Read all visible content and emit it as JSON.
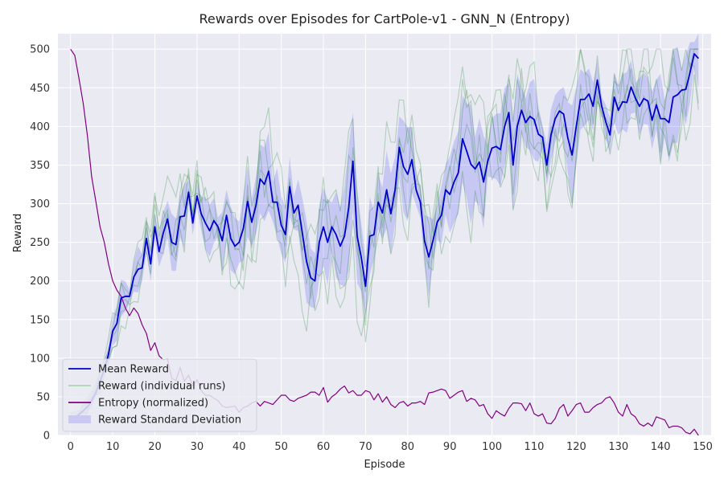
{
  "chart_data": {
    "type": "line",
    "title": "Rewards over Episodes for CartPole-v1 - GNN_N (Entropy)",
    "xlabel": "Episode",
    "ylabel": "Reward",
    "xlim": [
      -3,
      152
    ],
    "ylim": [
      0,
      520
    ],
    "xticks": [
      0,
      10,
      20,
      30,
      40,
      50,
      60,
      70,
      80,
      90,
      100,
      110,
      120,
      130,
      140,
      150
    ],
    "yticks": [
      0,
      50,
      100,
      150,
      200,
      250,
      300,
      350,
      400,
      450,
      500
    ],
    "grid": true,
    "legend_position": "lower-left",
    "colors": {
      "plot_bg": "#eaeaf2",
      "grid": "#ffffff",
      "mean": "#0000cc",
      "runs": "#2e8b3a",
      "entropy": "#800080",
      "std": "#0000ff"
    },
    "legend": [
      {
        "label": "Mean Reward",
        "kind": "line",
        "color": "#0000cc"
      },
      {
        "label": "Reward (individual runs)",
        "kind": "line",
        "color": "#a9d8b0"
      },
      {
        "label": "Entropy (normalized)",
        "kind": "line",
        "color": "#800080"
      },
      {
        "label": "Reward Standard Deviation",
        "kind": "patch",
        "color": "#c9c9f4"
      }
    ],
    "series": [
      {
        "name": "Mean Reward",
        "key": "mean",
        "x_start": 0,
        "values": [
          22,
          24,
          27,
          32,
          37,
          45,
          55,
          70,
          85,
          105,
          135,
          145,
          178,
          180,
          180,
          205,
          215,
          217,
          255,
          222,
          270,
          238,
          262,
          280,
          250,
          247,
          283,
          284,
          315,
          275,
          310,
          287,
          275,
          265,
          278,
          270,
          252,
          285,
          255,
          245,
          250,
          268,
          303,
          276,
          298,
          332,
          325,
          342,
          302,
          302,
          272,
          260,
          322,
          288,
          298,
          262,
          225,
          204,
          200,
          250,
          270,
          250,
          270,
          260,
          245,
          258,
          295,
          355,
          258,
          230,
          193,
          258,
          260,
          302,
          288,
          318,
          287,
          318,
          373,
          348,
          338,
          357,
          318,
          302,
          252,
          231,
          252,
          276,
          285,
          318,
          312,
          328,
          340,
          384,
          368,
          351,
          345,
          354,
          328,
          355,
          372,
          374,
          370,
          400,
          418,
          350,
          400,
          421,
          405,
          413,
          409,
          390,
          386,
          350,
          389,
          410,
          420,
          416,
          385,
          363,
          400,
          435,
          435,
          442,
          426,
          460,
          427,
          406,
          389,
          438,
          421,
          432,
          431,
          451,
          437,
          426,
          436,
          433,
          408,
          428,
          410,
          410,
          405,
          438,
          441,
          447,
          448,
          470,
          494,
          488
        ]
      },
      {
        "name": "Entropy (normalized)",
        "key": "entropy",
        "x_start": 0,
        "values": [
          500,
          492,
          462,
          430,
          388,
          335,
          303,
          270,
          250,
          222,
          200,
          188,
          180,
          165,
          155,
          165,
          158,
          143,
          132,
          110,
          120,
          103,
          98,
          99,
          74,
          71,
          88,
          70,
          78,
          64,
          72,
          58,
          52,
          52,
          48,
          45,
          38,
          36,
          37,
          38,
          30,
          36,
          38,
          42,
          44,
          38,
          44,
          42,
          40,
          46,
          52,
          52,
          46,
          44,
          48,
          50,
          52,
          56,
          56,
          52,
          62,
          43,
          50,
          54,
          60,
          64,
          55,
          58,
          52,
          52,
          58,
          56,
          46,
          54,
          43,
          50,
          40,
          36,
          42,
          44,
          38,
          42,
          42,
          44,
          40,
          55,
          56,
          58,
          60,
          58,
          48,
          52,
          56,
          58,
          44,
          48,
          46,
          38,
          40,
          28,
          22,
          32,
          28,
          25,
          35,
          42,
          42,
          41,
          32,
          42,
          28,
          25,
          28,
          16,
          15,
          22,
          35,
          40,
          25,
          32,
          40,
          42,
          30,
          30,
          36,
          40,
          42,
          48,
          50,
          42,
          30,
          25,
          40,
          28,
          24,
          15,
          12,
          16,
          12,
          24,
          22,
          20,
          10,
          12,
          12,
          10,
          4,
          2,
          8,
          0
        ]
      }
    ]
  }
}
